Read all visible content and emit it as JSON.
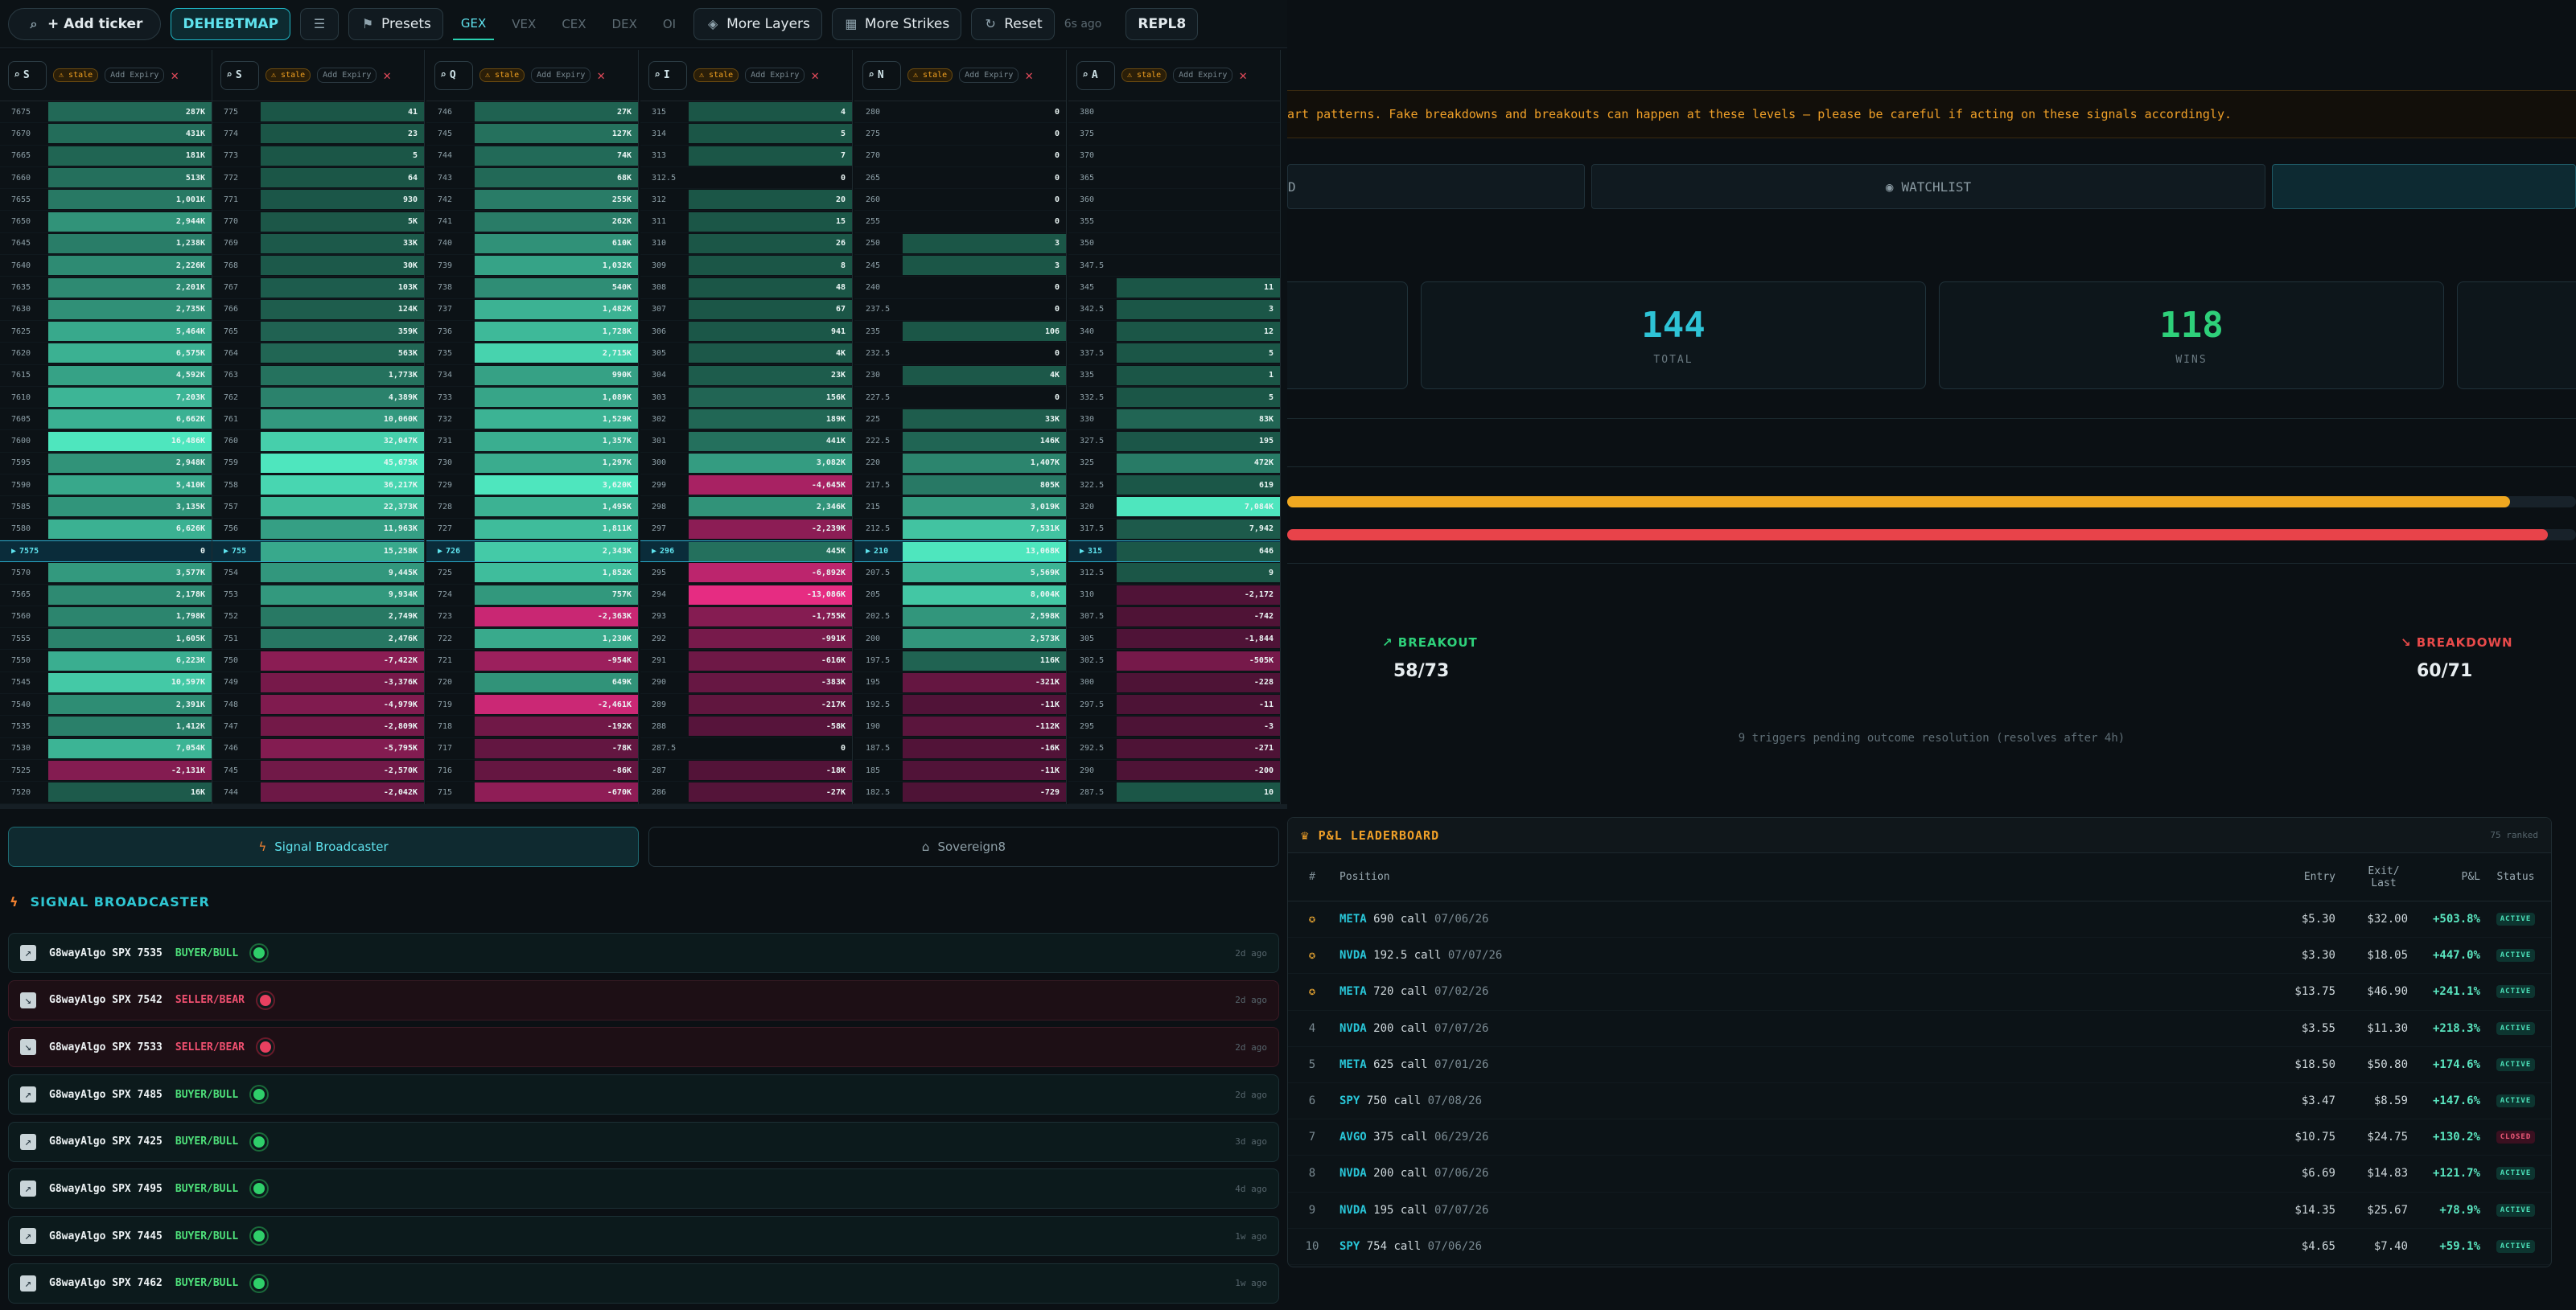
{
  "toolbar": {
    "add_ticker": "+ Add ticker",
    "mode": "DEHEBTMAP",
    "presets": "Presets",
    "tabs": [
      "GEX",
      "VEX",
      "CEX",
      "DEX",
      "OI"
    ],
    "more_layers": "More Layers",
    "more_strikes": "More Strikes",
    "reset": "Reset",
    "age": "6s ago",
    "repl": "REPL8"
  },
  "columns": [
    {
      "ticker": "S",
      "stale": "stale",
      "add_expiry": "Add Expiry",
      "atm_strike": "7575",
      "atm_value": "0",
      "rows": [
        [
          "7675",
          "287K"
        ],
        [
          "7670",
          "431K"
        ],
        [
          "7665",
          "181K"
        ],
        [
          "7660",
          "513K"
        ],
        [
          "7655",
          "1,001K"
        ],
        [
          "7650",
          "2,944K"
        ],
        [
          "7645",
          "1,238K"
        ],
        [
          "7640",
          "2,226K"
        ],
        [
          "7635",
          "2,201K"
        ],
        [
          "7630",
          "2,735K"
        ],
        [
          "7625",
          "5,464K"
        ],
        [
          "7620",
          "6,575K"
        ],
        [
          "7615",
          "4,592K"
        ],
        [
          "7610",
          "7,203K"
        ],
        [
          "7605",
          "6,662K"
        ],
        [
          "7600",
          "16,486K"
        ],
        [
          "7595",
          "2,948K"
        ],
        [
          "7590",
          "5,410K"
        ],
        [
          "7585",
          "3,135K"
        ],
        [
          "7580",
          "6,626K"
        ],
        [
          "7575",
          "0"
        ],
        [
          "7570",
          "3,577K"
        ],
        [
          "7565",
          "2,178K"
        ],
        [
          "7560",
          "1,798K"
        ],
        [
          "7555",
          "1,605K"
        ],
        [
          "7550",
          "6,223K"
        ],
        [
          "7545",
          "10,597K"
        ],
        [
          "7540",
          "2,391K"
        ],
        [
          "7535",
          "1,412K"
        ],
        [
          "7530",
          "7,054K"
        ],
        [
          "7525",
          "-2,131K"
        ],
        [
          "7520",
          "16K"
        ]
      ]
    },
    {
      "ticker": "S",
      "stale": "stale",
      "add_expiry": "Add Expiry",
      "atm_strike": "755",
      "atm_value": "15,258K",
      "rows": [
        [
          "775",
          "41"
        ],
        [
          "774",
          "23"
        ],
        [
          "773",
          "5"
        ],
        [
          "772",
          "64"
        ],
        [
          "771",
          "930"
        ],
        [
          "770",
          "5K"
        ],
        [
          "769",
          "33K"
        ],
        [
          "768",
          "30K"
        ],
        [
          "767",
          "103K"
        ],
        [
          "766",
          "124K"
        ],
        [
          "765",
          "359K"
        ],
        [
          "764",
          "563K"
        ],
        [
          "763",
          "1,773K"
        ],
        [
          "762",
          "4,389K"
        ],
        [
          "761",
          "10,060K"
        ],
        [
          "760",
          "32,047K"
        ],
        [
          "759",
          "45,675K"
        ],
        [
          "758",
          "36,217K"
        ],
        [
          "757",
          "22,373K"
        ],
        [
          "756",
          "11,963K"
        ],
        [
          "755",
          "15,258K"
        ],
        [
          "754",
          "9,445K"
        ],
        [
          "753",
          "9,934K"
        ],
        [
          "752",
          "2,749K"
        ],
        [
          "751",
          "2,476K"
        ],
        [
          "750",
          "-7,422K"
        ],
        [
          "749",
          "-3,376K"
        ],
        [
          "748",
          "-4,979K"
        ],
        [
          "747",
          "-2,809K"
        ],
        [
          "746",
          "-5,795K"
        ],
        [
          "745",
          "-2,570K"
        ],
        [
          "744",
          "-2,042K"
        ]
      ]
    },
    {
      "ticker": "Q",
      "stale": "stale",
      "add_expiry": "Add Expiry",
      "atm_strike": "726",
      "atm_value": "2,343K",
      "rows": [
        [
          "746",
          "27K"
        ],
        [
          "745",
          "127K"
        ],
        [
          "744",
          "74K"
        ],
        [
          "743",
          "68K"
        ],
        [
          "742",
          "255K"
        ],
        [
          "741",
          "262K"
        ],
        [
          "740",
          "610K"
        ],
        [
          "739",
          "1,032K"
        ],
        [
          "738",
          "540K"
        ],
        [
          "737",
          "1,482K"
        ],
        [
          "736",
          "1,728K"
        ],
        [
          "735",
          "2,715K"
        ],
        [
          "734",
          "990K"
        ],
        [
          "733",
          "1,089K"
        ],
        [
          "732",
          "1,529K"
        ],
        [
          "731",
          "1,357K"
        ],
        [
          "730",
          "1,297K"
        ],
        [
          "729",
          "3,620K"
        ],
        [
          "728",
          "1,495K"
        ],
        [
          "727",
          "1,811K"
        ],
        [
          "726",
          "2,343K"
        ],
        [
          "725",
          "1,852K"
        ],
        [
          "724",
          "757K"
        ],
        [
          "723",
          "-2,363K"
        ],
        [
          "722",
          "1,230K"
        ],
        [
          "721",
          "-954K"
        ],
        [
          "720",
          "649K"
        ],
        [
          "719",
          "-2,461K"
        ],
        [
          "718",
          "-192K"
        ],
        [
          "717",
          "-78K"
        ],
        [
          "716",
          "-86K"
        ],
        [
          "715",
          "-670K"
        ]
      ]
    },
    {
      "ticker": "I",
      "stale": "stale",
      "add_expiry": "Add Expiry",
      "atm_strike": "296",
      "atm_value": "445K",
      "rows": [
        [
          "315",
          "4"
        ],
        [
          "314",
          "5"
        ],
        [
          "313",
          "7"
        ],
        [
          "312.5",
          "0"
        ],
        [
          "312",
          "20"
        ],
        [
          "311",
          "15"
        ],
        [
          "310",
          "26"
        ],
        [
          "309",
          "8"
        ],
        [
          "308",
          "48"
        ],
        [
          "307",
          "67"
        ],
        [
          "306",
          "941"
        ],
        [
          "305",
          "4K"
        ],
        [
          "304",
          "23K"
        ],
        [
          "303",
          "156K"
        ],
        [
          "302",
          "189K"
        ],
        [
          "301",
          "441K"
        ],
        [
          "300",
          "3,082K"
        ],
        [
          "299",
          "-4,645K"
        ],
        [
          "298",
          "2,346K"
        ],
        [
          "297",
          "-2,239K"
        ],
        [
          "296",
          "445K"
        ],
        [
          "295",
          "-6,892K"
        ],
        [
          "294",
          "-13,086K"
        ],
        [
          "293",
          "-1,755K"
        ],
        [
          "292",
          "-991K"
        ],
        [
          "291",
          "-616K"
        ],
        [
          "290",
          "-383K"
        ],
        [
          "289",
          "-217K"
        ],
        [
          "288",
          "-58K"
        ],
        [
          "287.5",
          "0"
        ],
        [
          "287",
          "-18K"
        ],
        [
          "286",
          "-27K"
        ]
      ]
    },
    {
      "ticker": "N",
      "stale": "stale",
      "add_expiry": "Add Expiry",
      "atm_strike": "210",
      "atm_value": "13,068K",
      "rows": [
        [
          "280",
          "0"
        ],
        [
          "275",
          "0"
        ],
        [
          "270",
          "0"
        ],
        [
          "265",
          "0"
        ],
        [
          "260",
          "0"
        ],
        [
          "255",
          "0"
        ],
        [
          "250",
          "3"
        ],
        [
          "245",
          "3"
        ],
        [
          "240",
          "0"
        ],
        [
          "237.5",
          "0"
        ],
        [
          "235",
          "106"
        ],
        [
          "232.5",
          "0"
        ],
        [
          "230",
          "4K"
        ],
        [
          "227.5",
          "0"
        ],
        [
          "225",
          "33K"
        ],
        [
          "222.5",
          "146K"
        ],
        [
          "220",
          "1,407K"
        ],
        [
          "217.5",
          "805K"
        ],
        [
          "215",
          "3,019K"
        ],
        [
          "212.5",
          "7,531K"
        ],
        [
          "210",
          "13,068K"
        ],
        [
          "207.5",
          "5,569K"
        ],
        [
          "205",
          "8,004K"
        ],
        [
          "202.5",
          "2,598K"
        ],
        [
          "200",
          "2,573K"
        ],
        [
          "197.5",
          "116K"
        ],
        [
          "195",
          "-321K"
        ],
        [
          "192.5",
          "-11K"
        ],
        [
          "190",
          "-112K"
        ],
        [
          "187.5",
          "-16K"
        ],
        [
          "185",
          "-11K"
        ],
        [
          "182.5",
          "-729"
        ]
      ]
    },
    {
      "ticker": "A",
      "stale": "stale",
      "add_expiry": "Add Expiry",
      "atm_strike": "315",
      "atm_value": "646",
      "rows": [
        [
          "380",
          ""
        ],
        [
          "375",
          ""
        ],
        [
          "370",
          ""
        ],
        [
          "365",
          ""
        ],
        [
          "360",
          ""
        ],
        [
          "355",
          ""
        ],
        [
          "350",
          ""
        ],
        [
          "347.5",
          ""
        ],
        [
          "345",
          "11"
        ],
        [
          "342.5",
          "3"
        ],
        [
          "340",
          "12"
        ],
        [
          "337.5",
          "5"
        ],
        [
          "335",
          "1"
        ],
        [
          "332.5",
          "5"
        ],
        [
          "330",
          "83K"
        ],
        [
          "327.5",
          "195"
        ],
        [
          "325",
          "472K"
        ],
        [
          "322.5",
          "619"
        ],
        [
          "320",
          "7,084K"
        ],
        [
          "317.5",
          "7,942"
        ],
        [
          "315",
          "646"
        ],
        [
          "312.5",
          "9"
        ],
        [
          "310",
          "-2,172"
        ],
        [
          "307.5",
          "-742"
        ],
        [
          "305",
          "-1,844"
        ],
        [
          "302.5",
          "-505K"
        ],
        [
          "300",
          "-228"
        ],
        [
          "297.5",
          "-11"
        ],
        [
          "295",
          "-3"
        ],
        [
          "292.5",
          "-271"
        ],
        [
          "290",
          "-200"
        ],
        [
          "287.5",
          "10"
        ]
      ]
    }
  ],
  "bottom": {
    "tab_signal": "Signal Broadcaster",
    "tab_sovereign": "Sovereign8",
    "section_title": "SIGNAL BROADCASTER",
    "signals": [
      {
        "name": "G8wayAlgo SPX 7535",
        "dir": "BUYER/BULL",
        "time": "2d ago",
        "bull": true
      },
      {
        "name": "G8wayAlgo SPX 7542",
        "dir": "SELLER/BEAR",
        "time": "2d ago",
        "bull": false
      },
      {
        "name": "G8wayAlgo SPX 7533",
        "dir": "SELLER/BEAR",
        "time": "2d ago",
        "bull": false
      },
      {
        "name": "G8wayAlgo SPX 7485",
        "dir": "BUYER/BULL",
        "time": "2d ago",
        "bull": true
      },
      {
        "name": "G8wayAlgo SPX 7425",
        "dir": "BUYER/BULL",
        "time": "3d ago",
        "bull": true
      },
      {
        "name": "G8wayAlgo SPX 7495",
        "dir": "BUYER/BULL",
        "time": "4d ago",
        "bull": true
      },
      {
        "name": "G8wayAlgo SPX 7445",
        "dir": "BUYER/BULL",
        "time": "1w ago",
        "bull": true
      },
      {
        "name": "G8wayAlgo SPX 7462",
        "dir": "BUYER/BULL",
        "time": "1w ago",
        "bull": true
      }
    ]
  },
  "right": {
    "warning": "art patterns. Fake breakdowns and breakouts can happen at these levels — please be careful if acting on these signals accordingly.",
    "tab_left": "D",
    "tab_watchlist": "WATCHLIST",
    "total": "144",
    "total_label": "TOTAL",
    "wins": "118",
    "wins_label": "WINS",
    "bar_orange_fraction": 0.949,
    "bar_red_fraction": 0.978,
    "breakout_label": "BREAKOUT",
    "breakout_value": "58/73",
    "breakdown_label": "BREAKDOWN",
    "breakdown_value": "60/71",
    "pending": "9 triggers pending outcome resolution (resolves after 4h)"
  },
  "leaderboard": {
    "title": "P&L LEADERBOARD",
    "ranked": "75 ranked",
    "headers": {
      "rank": "#",
      "position": "Position",
      "entry": "Entry",
      "exit": "Exit/ Last",
      "pnl": "P&L",
      "status": "Status"
    },
    "rows": [
      {
        "rank": "1",
        "medal": true,
        "ticker": "META",
        "rest": "690 call",
        "date": "07/06/26",
        "entry": "$5.30",
        "exit": "$32.00",
        "pnl": "+503.8%",
        "status": "ACTIVE"
      },
      {
        "rank": "2",
        "medal": true,
        "ticker": "NVDA",
        "rest": "192.5 call",
        "date": "07/07/26",
        "entry": "$3.30",
        "exit": "$18.05",
        "pnl": "+447.0%",
        "status": "ACTIVE"
      },
      {
        "rank": "3",
        "medal": true,
        "ticker": "META",
        "rest": "720 call",
        "date": "07/02/26",
        "entry": "$13.75",
        "exit": "$46.90",
        "pnl": "+241.1%",
        "status": "ACTIVE"
      },
      {
        "rank": "4",
        "medal": false,
        "ticker": "NVDA",
        "rest": "200 call",
        "date": "07/07/26",
        "entry": "$3.55",
        "exit": "$11.30",
        "pnl": "+218.3%",
        "status": "ACTIVE"
      },
      {
        "rank": "5",
        "medal": false,
        "ticker": "META",
        "rest": "625 call",
        "date": "07/01/26",
        "entry": "$18.50",
        "exit": "$50.80",
        "pnl": "+174.6%",
        "status": "ACTIVE"
      },
      {
        "rank": "6",
        "medal": false,
        "ticker": "SPY",
        "rest": "750 call",
        "date": "07/08/26",
        "entry": "$3.47",
        "exit": "$8.59",
        "pnl": "+147.6%",
        "status": "ACTIVE"
      },
      {
        "rank": "7",
        "medal": false,
        "ticker": "AVGO",
        "rest": "375 call",
        "date": "06/29/26",
        "entry": "$10.75",
        "exit": "$24.75",
        "pnl": "+130.2%",
        "status": "CLOSED"
      },
      {
        "rank": "8",
        "medal": false,
        "ticker": "NVDA",
        "rest": "200 call",
        "date": "07/06/26",
        "entry": "$6.69",
        "exit": "$14.83",
        "pnl": "+121.7%",
        "status": "ACTIVE"
      },
      {
        "rank": "9",
        "medal": false,
        "ticker": "NVDA",
        "rest": "195 call",
        "date": "07/07/26",
        "entry": "$14.35",
        "exit": "$25.67",
        "pnl": "+78.9%",
        "status": "ACTIVE"
      },
      {
        "rank": "10",
        "medal": false,
        "ticker": "SPY",
        "rest": "754 call",
        "date": "07/06/26",
        "entry": "$4.65",
        "exit": "$7.40",
        "pnl": "+59.1%",
        "status": "ACTIVE"
      }
    ]
  }
}
